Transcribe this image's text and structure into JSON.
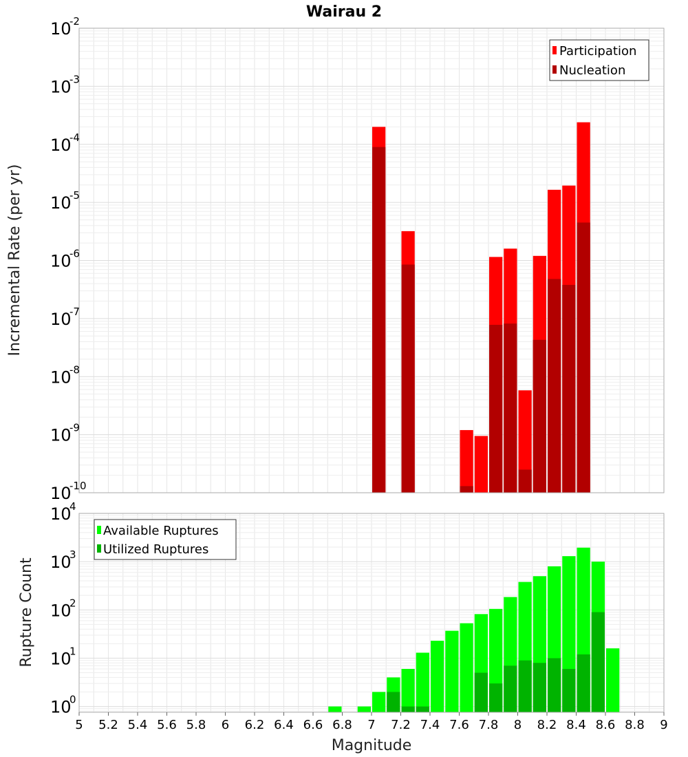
{
  "title": "Wairau 2",
  "xlabel": "Magnitude",
  "colors": {
    "participation": "#ff0000",
    "nucleation": "#b20000",
    "available": "#00ff00",
    "utilized": "#00b300",
    "grid": "#e6e6e6",
    "frame": "#aaaaaa"
  },
  "xaxis": {
    "xlim": [
      5,
      9
    ],
    "ticks": [
      "5",
      "5.2",
      "5.4",
      "5.6",
      "5.8",
      "6",
      "6.2",
      "6.4",
      "6.6",
      "6.8",
      "7",
      "7.2",
      "7.4",
      "7.6",
      "7.8",
      "8",
      "8.2",
      "8.4",
      "8.6",
      "8.8",
      "9"
    ]
  },
  "chart_data": [
    {
      "type": "bar",
      "scale": "log",
      "ylabel": "Incremental Rate (per yr)",
      "ylim_exp": [
        -10,
        -2
      ],
      "ytick_base": "10",
      "ytick_exponents": [
        "-10",
        "-9",
        "-8",
        "-7",
        "-6",
        "-5",
        "-4",
        "-3",
        "-2"
      ],
      "legend": {
        "position": "top-right",
        "entries": [
          "Participation",
          "Nucleation"
        ]
      },
      "x": [
        7.05,
        7.25,
        7.65,
        7.75,
        7.85,
        7.95,
        8.05,
        8.15,
        8.25,
        8.35,
        8.45
      ],
      "series": [
        {
          "name": "Participation",
          "values": [
            0.0002,
            3.2e-06,
            1.2e-09,
            9.5e-10,
            1.15e-06,
            1.6e-06,
            5.8e-09,
            1.2e-06,
            1.65e-05,
            1.95e-05,
            0.00024
          ]
        },
        {
          "name": "Nucleation",
          "values": [
            9e-05,
            8.5e-07,
            1.3e-10,
            null,
            7.8e-08,
            8.2e-08,
            2.5e-10,
            4.3e-08,
            4.8e-07,
            3.8e-07,
            4.5e-06
          ]
        }
      ]
    },
    {
      "type": "bar",
      "scale": "log",
      "ylabel": "Rupture Count",
      "ylim_exp": [
        -0.12,
        4
      ],
      "ytick_base": "10",
      "ytick_exponents": [
        "0",
        "1",
        "2",
        "3",
        "4"
      ],
      "legend": {
        "position": "top-left",
        "entries": [
          "Available Ruptures",
          "Utilized Ruptures"
        ]
      },
      "x": [
        6.75,
        6.95,
        7.05,
        7.15,
        7.25,
        7.35,
        7.45,
        7.55,
        7.65,
        7.75,
        7.85,
        7.95,
        8.05,
        8.15,
        8.25,
        8.35,
        8.45,
        8.55,
        8.65
      ],
      "series": [
        {
          "name": "Available Ruptures",
          "values": [
            1,
            1,
            2,
            4,
            6,
            13,
            23,
            37,
            53,
            82,
            105,
            185,
            380,
            500,
            800,
            1300,
            1950,
            1000,
            16
          ]
        },
        {
          "name": "Utilized Ruptures",
          "values": [
            null,
            null,
            null,
            2,
            1,
            1,
            null,
            null,
            null,
            5,
            3,
            7,
            9,
            8,
            10,
            6,
            12,
            90,
            null
          ]
        }
      ]
    }
  ]
}
